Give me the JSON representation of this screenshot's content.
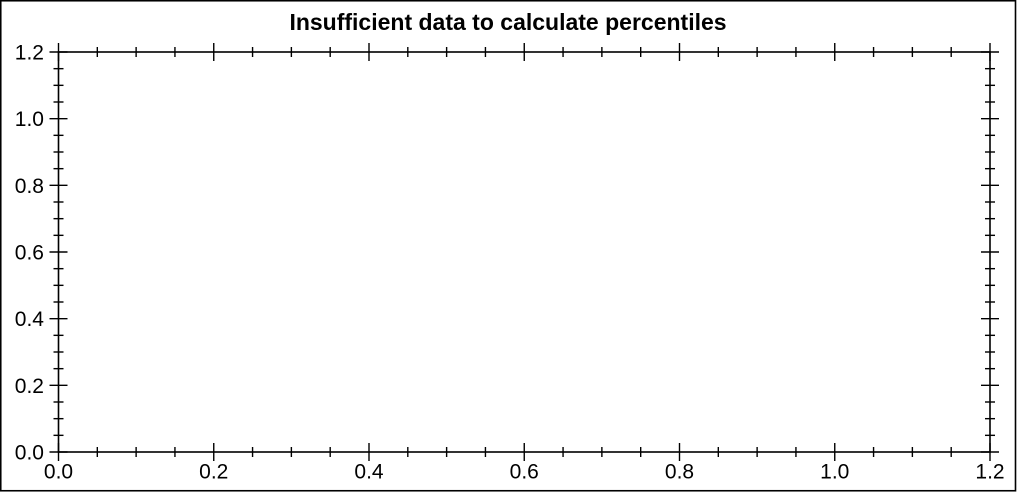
{
  "figure": {
    "background": "#ffffff",
    "border_color": "#000000"
  },
  "chart_data": {
    "type": "scatter",
    "title": "Insufficient data to calculate percentiles",
    "subtitle": "",
    "series": [],
    "xlabel": "",
    "ylabel": "",
    "xlim": [
      0.0,
      1.2
    ],
    "ylim": [
      0.0,
      1.2
    ],
    "x_ticks": [
      0.0,
      0.2,
      0.4,
      0.6,
      0.8,
      1.0,
      1.2
    ],
    "x_tick_labels": [
      "0.0",
      "0.2",
      "0.4",
      "0.6",
      "0.8",
      "1.0",
      "1.2"
    ],
    "y_ticks": [
      0.0,
      0.2,
      0.4,
      0.6,
      0.8,
      1.0,
      1.2
    ],
    "y_tick_labels": [
      "0.0",
      "0.2",
      "0.4",
      "0.6",
      "0.8",
      "1.0",
      "1.2"
    ],
    "minor_ticks_between_majors": 3,
    "tick_style": "crossing",
    "ticks_on_all_four_sides": true,
    "grid": false,
    "legend": false,
    "axis_color": "#000000",
    "text_color": "#000000"
  }
}
